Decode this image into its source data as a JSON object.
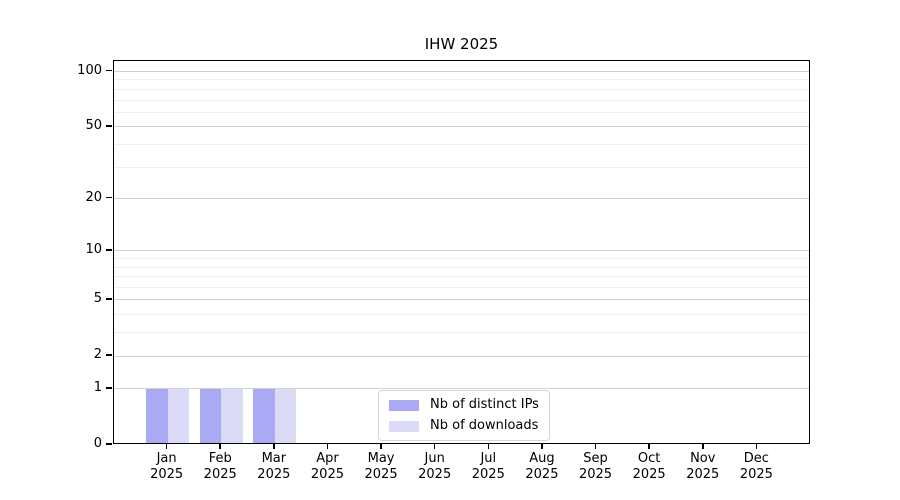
{
  "title": "IHW 2025",
  "chart_data": {
    "type": "bar",
    "title": "IHW 2025",
    "categories": [
      {
        "line1": "Jan",
        "line2": "2025"
      },
      {
        "line1": "Feb",
        "line2": "2025"
      },
      {
        "line1": "Mar",
        "line2": "2025"
      },
      {
        "line1": "Apr",
        "line2": "2025"
      },
      {
        "line1": "May",
        "line2": "2025"
      },
      {
        "line1": "Jun",
        "line2": "2025"
      },
      {
        "line1": "Jul",
        "line2": "2025"
      },
      {
        "line1": "Aug",
        "line2": "2025"
      },
      {
        "line1": "Sep",
        "line2": "2025"
      },
      {
        "line1": "Oct",
        "line2": "2025"
      },
      {
        "line1": "Nov",
        "line2": "2025"
      },
      {
        "line1": "Dec",
        "line2": "2025"
      }
    ],
    "series": [
      {
        "name": "Nb of distinct IPs",
        "color": "#a9a9f4",
        "values": [
          1,
          1,
          1,
          0,
          0,
          0,
          0,
          0,
          0,
          0,
          0,
          0
        ]
      },
      {
        "name": "Nb of downloads",
        "color": "#dbdbf7",
        "values": [
          1,
          1,
          1,
          0,
          0,
          0,
          0,
          0,
          0,
          0,
          0,
          0
        ]
      }
    ],
    "xlabel": "",
    "ylabel": "",
    "yscale": "log1p",
    "ylim": [
      0,
      114
    ],
    "yticks": [
      0,
      1,
      2,
      5,
      10,
      20,
      50,
      100
    ],
    "minor_yticks": [
      3,
      4,
      6,
      7,
      8,
      9,
      30,
      40,
      60,
      70,
      80,
      90
    ],
    "grid": "horizontal",
    "legend_position": "bottom-center-inside"
  }
}
